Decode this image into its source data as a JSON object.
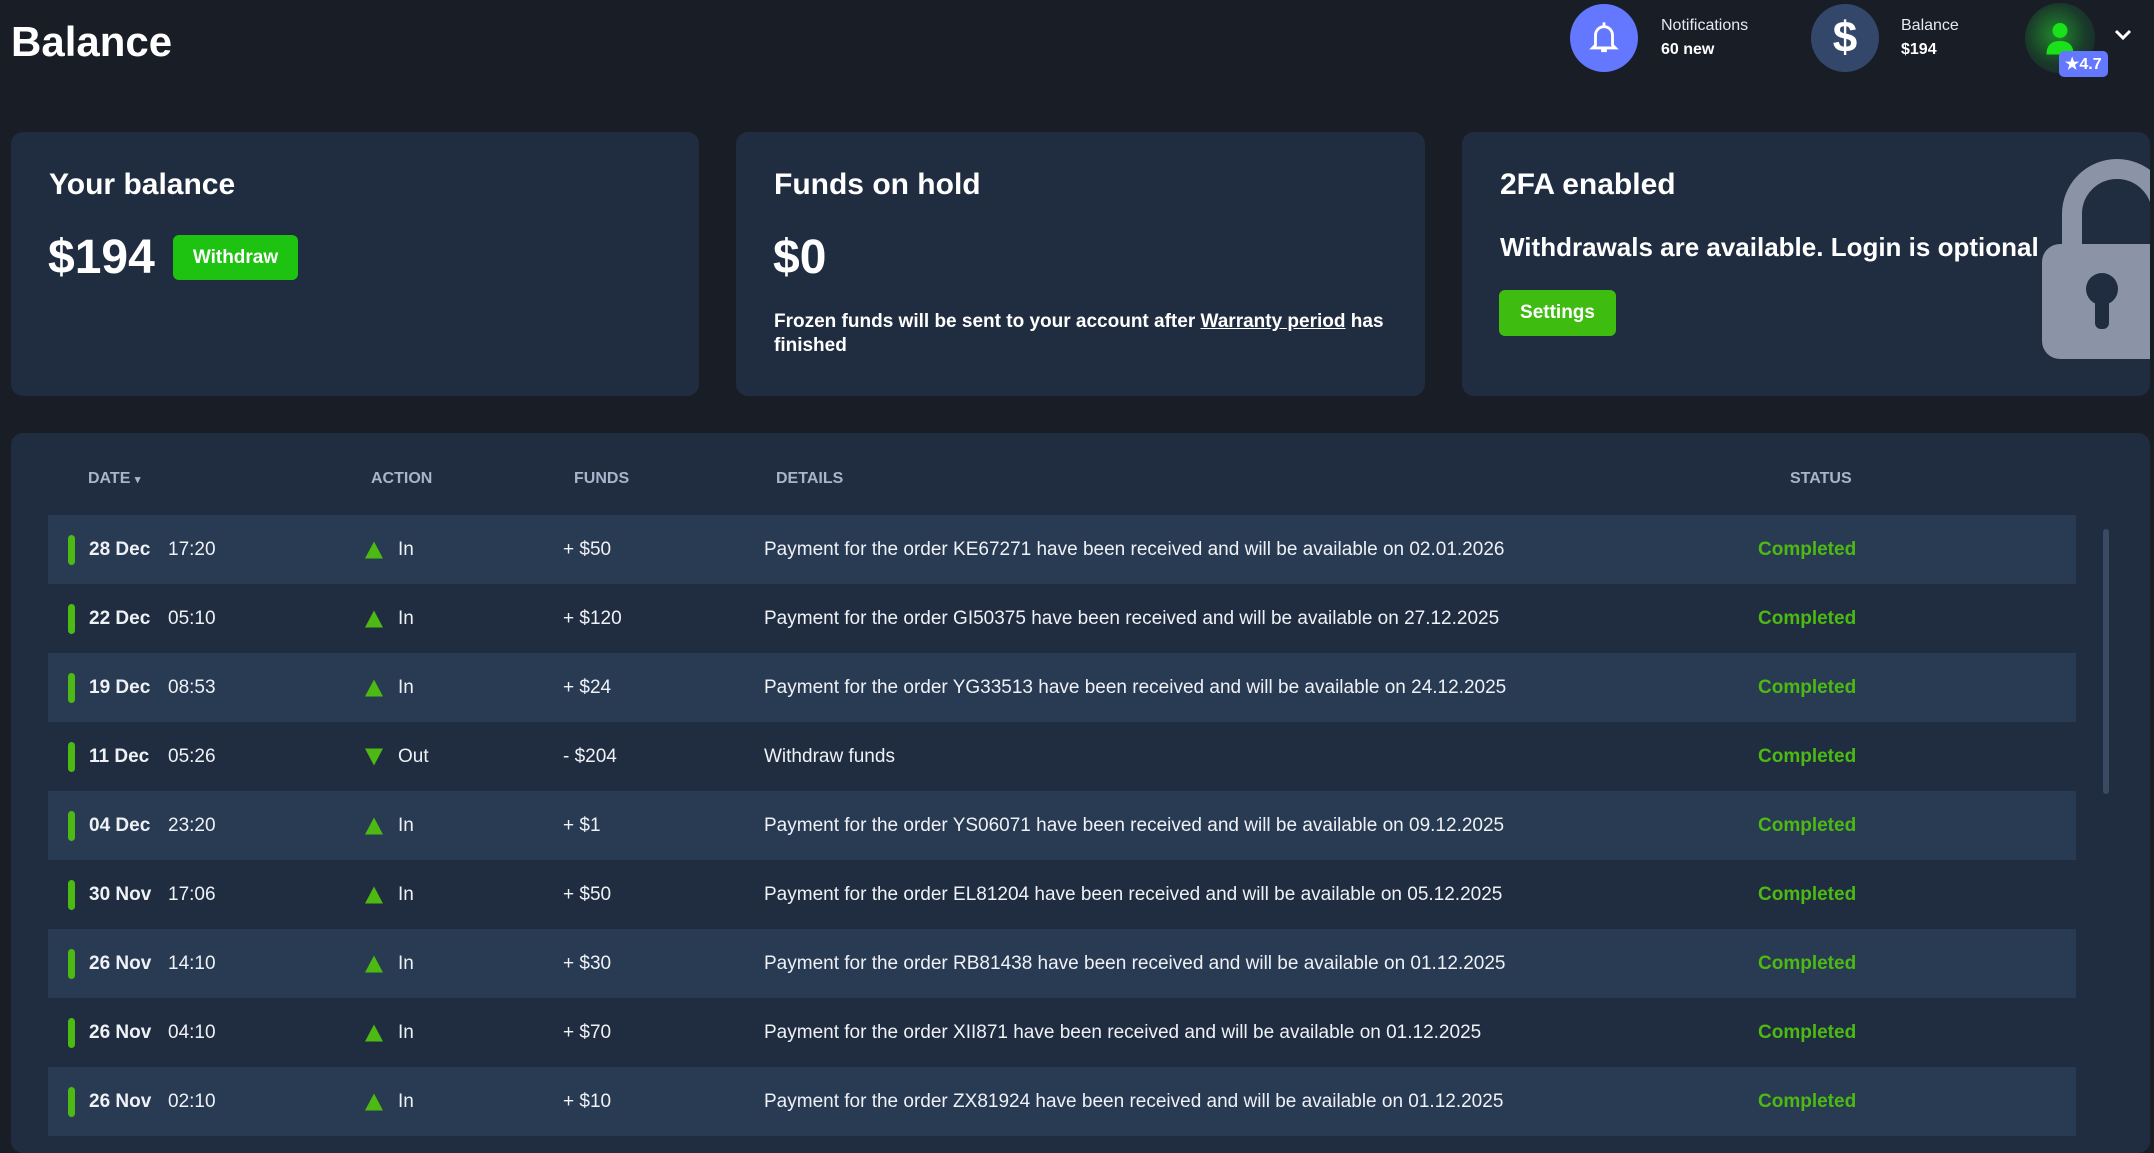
{
  "page": {
    "title": "Balance"
  },
  "header": {
    "notifications": {
      "label": "Notifications",
      "value": "60 new",
      "icon": "bell-icon",
      "color": "#6378ff"
    },
    "balance": {
      "label": "Balance",
      "value": "$194",
      "icon": "dollar-icon"
    },
    "user": {
      "rating": "★4.7",
      "icon": "user-avatar"
    }
  },
  "cards": {
    "balance": {
      "title": "Your balance",
      "amount": "$194",
      "button": "Withdraw"
    },
    "hold": {
      "title": "Funds on hold",
      "amount": "$0",
      "text": "Frozen funds will be sent to your account after ",
      "link": "Warranty period",
      "text2": " has finished"
    },
    "twofa": {
      "title": "2FA enabled",
      "text": "Withdrawals are available. Login is optional",
      "button": "Settings",
      "icon": "lock-icon"
    }
  },
  "table": {
    "headers": {
      "date": "DATE",
      "action": "ACTION",
      "funds": "FUNDS",
      "details": "DETAILS",
      "status": "STATUS"
    },
    "sort": {
      "column": "date",
      "direction": "desc"
    },
    "rows": [
      {
        "date": "28 Dec",
        "time": "17:20",
        "dir": "up",
        "action": "In",
        "funds": "+ $50",
        "details": "Payment for the order KE67271 have been received and will be available on 02.01.2026",
        "status": "Completed"
      },
      {
        "date": "22 Dec",
        "time": "05:10",
        "dir": "up",
        "action": "In",
        "funds": "+ $120",
        "details": "Payment for the order GI50375 have been received and will be available on 27.12.2025",
        "status": "Completed"
      },
      {
        "date": "19 Dec",
        "time": "08:53",
        "dir": "up",
        "action": "In",
        "funds": "+ $24",
        "details": "Payment for the order YG33513 have been received and will be available on 24.12.2025",
        "status": "Completed"
      },
      {
        "date": "11 Dec",
        "time": "05:26",
        "dir": "down",
        "action": "Out",
        "funds": "- $204",
        "details": "Withdraw funds",
        "status": "Completed"
      },
      {
        "date": "04 Dec",
        "time": "23:20",
        "dir": "up",
        "action": "In",
        "funds": "+ $1",
        "details": "Payment for the order YS06071 have been received and will be available on 09.12.2025",
        "status": "Completed"
      },
      {
        "date": "30 Nov",
        "time": "17:06",
        "dir": "up",
        "action": "In",
        "funds": "+ $50",
        "details": "Payment for the order EL81204 have been received and will be available on 05.12.2025",
        "status": "Completed"
      },
      {
        "date": "26 Nov",
        "time": "14:10",
        "dir": "up",
        "action": "In",
        "funds": "+ $30",
        "details": "Payment for the order RB81438 have been received and will be available on 01.12.2025",
        "status": "Completed"
      },
      {
        "date": "26 Nov",
        "time": "04:10",
        "dir": "up",
        "action": "In",
        "funds": "+ $70",
        "details": "Payment for the order XII871 have been received and will be available on 01.12.2025",
        "status": "Completed"
      },
      {
        "date": "26 Nov",
        "time": "02:10",
        "dir": "up",
        "action": "In",
        "funds": "+ $10",
        "details": "Payment for the order ZX81924 have been received and will be available on 01.12.2025",
        "status": "Completed"
      }
    ]
  }
}
